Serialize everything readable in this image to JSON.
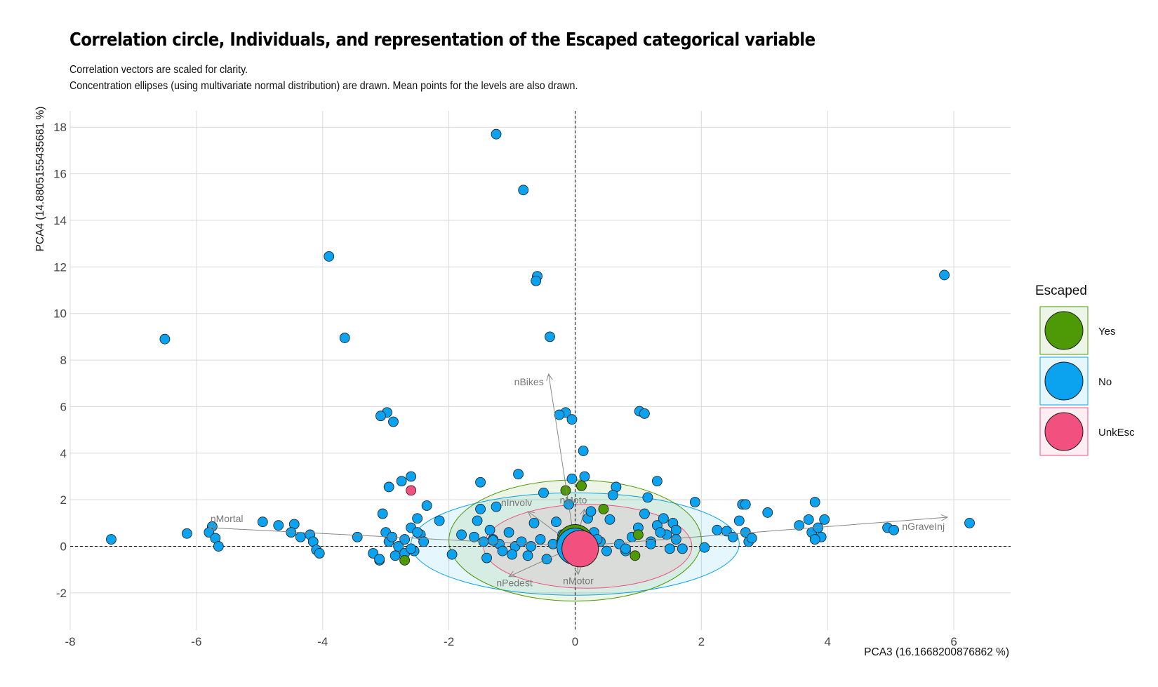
{
  "chart_data": {
    "type": "scatter",
    "title": "Correlation circle, Individuals, and representation of the Escaped categorical variable",
    "subtitle_lines": [
      "Correlation vectors are scaled for clarity.",
      "Concentration ellipses (using multivariate normal distribution) are drawn. Mean points for the levels are also drawn."
    ],
    "xlabel": "PCA3 (16.1668200876862 %)",
    "ylabel": "PCA4 (14.8805155435681 %)",
    "xlim": [
      -8,
      6.9
    ],
    "ylim": [
      -3.6,
      18.7
    ],
    "x_ticks": [
      -8,
      -6,
      -4,
      -2,
      0,
      2,
      4,
      6
    ],
    "y_ticks": [
      -2,
      0,
      2,
      4,
      6,
      8,
      10,
      12,
      14,
      16,
      18
    ],
    "grid": true,
    "legend": {
      "title": "Escaped",
      "position": "right",
      "entries": [
        {
          "name": "Yes",
          "color": "#4e9a06"
        },
        {
          "name": "No",
          "color": "#0ba2f0"
        },
        {
          "name": "UnkEsc",
          "color": "#f2507f"
        }
      ]
    },
    "series": [
      {
        "name": "Yes",
        "color": "#4e9a06",
        "x": [
          -0.15,
          0.45,
          -2.7,
          0.95,
          1.0,
          -0.1,
          0.2,
          0.1,
          -0.2
        ],
        "y": [
          2.4,
          1.6,
          -0.6,
          -0.4,
          0.5,
          0.4,
          0.1,
          2.6,
          0.3
        ]
      },
      {
        "name": "UnkEsc",
        "color": "#f2507f",
        "x": [
          -2.6
        ],
        "y": [
          2.4
        ]
      },
      {
        "name": "No",
        "color": "#0ba2f0",
        "x": [
          -1.25,
          -0.82,
          -3.9,
          5.85,
          -0.6,
          -0.62,
          -6.5,
          -3.65,
          -0.4,
          1.02,
          1.1,
          -2.98,
          -3.08,
          -2.88,
          0.13,
          -0.15,
          -0.05,
          -0.25,
          -0.9,
          -1.5,
          -2.6,
          -2.75,
          -2.95,
          1.3,
          0.15,
          -0.05,
          0.65,
          0.1,
          -0.5,
          0.6,
          1.15,
          1.9,
          2.65,
          3.8,
          3.05,
          6.25,
          4.95,
          5.05,
          -7.35,
          -6.15,
          -5.75,
          -5.8,
          -5.7,
          -5.65,
          -4.95,
          -4.7,
          -4.45,
          -4.5,
          -4.35,
          -4.2,
          -4.15,
          -4.1,
          -4.05,
          -3.45,
          -3.05,
          -3.2,
          -3.1,
          -3.0,
          -2.95,
          -2.9,
          -2.85,
          -2.8,
          -2.7,
          -2.6,
          -2.55,
          -2.5,
          -2.45,
          -2.35,
          -2.15,
          -1.95,
          -1.8,
          -1.55,
          -1.5,
          -1.45,
          -1.4,
          -1.35,
          -1.3,
          -1.25,
          -1.2,
          -1.15,
          -1.05,
          -0.95,
          -0.85,
          -0.75,
          -0.65,
          -0.55,
          -0.45,
          -0.35,
          -0.3,
          -0.2,
          -0.1,
          0.2,
          0.3,
          0.4,
          0.55,
          0.7,
          0.8,
          0.9,
          1.0,
          1.1,
          1.2,
          1.3,
          1.4,
          1.45,
          1.5,
          1.55,
          1.6,
          1.7,
          2.05,
          2.25,
          2.4,
          2.5,
          2.6,
          2.7,
          2.75,
          2.8,
          3.55,
          3.7,
          3.75,
          3.85,
          3.9,
          3.95,
          -2.5,
          -2.7,
          -3.1,
          -1.6,
          -1.3,
          -0.7,
          -0.05,
          0.35,
          0.8,
          1.2,
          1.6,
          -2.6,
          -2.4,
          -1.0,
          0.25,
          0.5,
          1.35,
          2.7,
          3.8
        ],
        "y": [
          17.7,
          15.3,
          12.45,
          11.65,
          11.6,
          11.4,
          8.9,
          8.95,
          9.0,
          5.8,
          5.7,
          5.75,
          5.6,
          5.35,
          4.1,
          5.75,
          5.45,
          5.65,
          3.1,
          2.75,
          3.0,
          2.8,
          2.55,
          2.8,
          3.0,
          2.9,
          2.55,
          2.6,
          2.3,
          2.2,
          2.1,
          1.9,
          1.8,
          1.9,
          1.45,
          1.0,
          0.8,
          0.7,
          0.3,
          0.55,
          0.85,
          0.6,
          0.35,
          0.0,
          1.05,
          0.9,
          0.95,
          0.6,
          0.4,
          0.5,
          0.2,
          -0.15,
          -0.3,
          0.4,
          1.4,
          -0.3,
          -0.6,
          0.6,
          0.2,
          0.4,
          -0.4,
          0.0,
          0.3,
          0.8,
          -0.2,
          1.2,
          0.5,
          1.75,
          1.1,
          -0.35,
          0.5,
          1.1,
          1.6,
          0.2,
          -0.5,
          0.7,
          0.3,
          1.7,
          0.1,
          -0.2,
          0.6,
          0.0,
          0.2,
          -0.4,
          1.0,
          0.3,
          -0.55,
          0.1,
          1.05,
          0.5,
          1.8,
          1.2,
          0.6,
          0.2,
          1.15,
          0.1,
          -0.2,
          0.4,
          0.8,
          1.4,
          0.2,
          0.9,
          1.2,
          0.5,
          -0.1,
          1.0,
          0.7,
          -0.1,
          -0.05,
          0.7,
          0.65,
          0.4,
          1.1,
          0.6,
          0.2,
          0.35,
          0.9,
          1.15,
          0.6,
          0.8,
          0.4,
          1.15,
          0.6,
          -0.3,
          -0.55,
          0.4,
          0.25,
          0.0,
          -0.1,
          0.3,
          -0.1,
          0.1,
          0.3,
          -0.1,
          0.2,
          -0.35,
          1.5,
          -0.2,
          0.6,
          1.8,
          0.3
        ]
      }
    ],
    "mean_points": [
      {
        "level": "Yes",
        "x": 0.0,
        "y": 0.15
      },
      {
        "level": "No",
        "x": 0.0,
        "y": 0.0
      },
      {
        "level": "UnkEsc",
        "x": 0.08,
        "y": -0.1
      }
    ],
    "ellipses": [
      {
        "level": "Yes",
        "cx": 0.0,
        "cy": 0.25,
        "rx": 2.0,
        "ry": 2.6
      },
      {
        "level": "No",
        "cx": 0.0,
        "cy": 0.1,
        "rx": 2.6,
        "ry": 2.2
      },
      {
        "level": "UnkEsc",
        "cx": 0.2,
        "cy": 0.0,
        "rx": 1.65,
        "ry": 1.8
      }
    ],
    "vectors": [
      {
        "name": "nBikes",
        "x": -0.42,
        "y": 7.4
      },
      {
        "name": "nMortal",
        "x": -5.8,
        "y": 0.8
      },
      {
        "name": "nGraveInj",
        "x": 5.9,
        "y": 1.25
      },
      {
        "name": "nInvolv",
        "x": -0.75,
        "y": 1.5
      },
      {
        "name": "nPedest",
        "x": -1.05,
        "y": -1.3
      },
      {
        "name": "nMotor",
        "x": 0.05,
        "y": -1.2
      },
      {
        "name": "nMoto",
        "x": 0.15,
        "y": 1.6
      }
    ]
  },
  "colors": {
    "yes": "#4e9a06",
    "no": "#0ba2f0",
    "unkesc": "#f2507f",
    "vector": "#888888",
    "grid": "#d9d9d9"
  }
}
